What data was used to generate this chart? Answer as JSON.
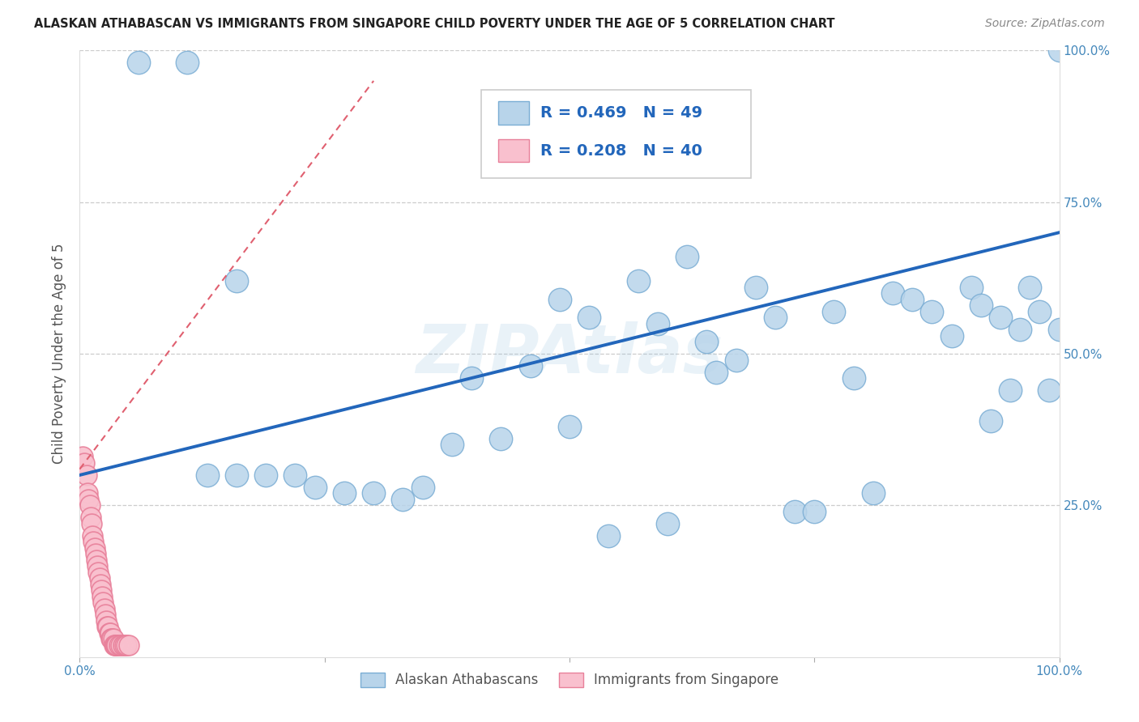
{
  "title": "ALASKAN ATHABASCAN VS IMMIGRANTS FROM SINGAPORE CHILD POVERTY UNDER THE AGE OF 5 CORRELATION CHART",
  "source": "Source: ZipAtlas.com",
  "ylabel": "Child Poverty Under the Age of 5",
  "xlim": [
    0,
    1.0
  ],
  "ylim": [
    0,
    1.0
  ],
  "blue_color": "#b8d4ea",
  "blue_edge": "#7aadd4",
  "pink_color": "#f9c0ce",
  "pink_edge": "#e8809a",
  "trend_blue": "#2266bb",
  "trend_pink": "#e06070",
  "R_blue": 0.469,
  "N_blue": 49,
  "R_pink": 0.208,
  "N_pink": 40,
  "legend_label_blue": "Alaskan Athabascans",
  "legend_label_pink": "Immigrants from Singapore",
  "watermark": "ZIPAtlas",
  "blue_scatter_x": [
    0.06,
    0.11,
    0.16,
    0.13,
    0.16,
    0.19,
    0.22,
    0.24,
    0.27,
    0.3,
    0.33,
    0.35,
    0.38,
    0.4,
    0.43,
    0.46,
    0.49,
    0.5,
    0.52,
    0.54,
    0.57,
    0.59,
    0.6,
    0.62,
    0.64,
    0.65,
    0.67,
    0.69,
    0.71,
    0.73,
    0.75,
    0.77,
    0.79,
    0.81,
    0.83,
    0.85,
    0.87,
    0.89,
    0.91,
    0.92,
    0.93,
    0.94,
    0.95,
    0.96,
    0.97,
    0.98,
    0.99,
    1.0,
    1.0
  ],
  "blue_scatter_y": [
    0.98,
    0.98,
    0.62,
    0.3,
    0.3,
    0.3,
    0.3,
    0.28,
    0.27,
    0.27,
    0.26,
    0.28,
    0.35,
    0.46,
    0.36,
    0.48,
    0.59,
    0.38,
    0.56,
    0.2,
    0.62,
    0.55,
    0.22,
    0.66,
    0.52,
    0.47,
    0.49,
    0.61,
    0.56,
    0.24,
    0.24,
    0.57,
    0.46,
    0.27,
    0.6,
    0.59,
    0.57,
    0.53,
    0.61,
    0.58,
    0.39,
    0.56,
    0.44,
    0.54,
    0.61,
    0.57,
    0.44,
    0.54,
    1.0
  ],
  "pink_scatter_x": [
    0.003,
    0.005,
    0.007,
    0.008,
    0.009,
    0.01,
    0.011,
    0.012,
    0.013,
    0.014,
    0.015,
    0.016,
    0.017,
    0.018,
    0.019,
    0.02,
    0.021,
    0.022,
    0.023,
    0.024,
    0.025,
    0.026,
    0.027,
    0.028,
    0.029,
    0.03,
    0.031,
    0.032,
    0.033,
    0.034,
    0.035,
    0.036,
    0.037,
    0.038,
    0.04,
    0.042,
    0.044,
    0.046,
    0.048,
    0.05
  ],
  "pink_scatter_y": [
    0.33,
    0.32,
    0.3,
    0.27,
    0.26,
    0.25,
    0.23,
    0.22,
    0.2,
    0.19,
    0.18,
    0.17,
    0.16,
    0.15,
    0.14,
    0.13,
    0.12,
    0.11,
    0.1,
    0.09,
    0.08,
    0.07,
    0.06,
    0.05,
    0.05,
    0.04,
    0.04,
    0.03,
    0.03,
    0.03,
    0.02,
    0.02,
    0.02,
    0.02,
    0.02,
    0.02,
    0.02,
    0.02,
    0.02,
    0.02
  ],
  "trend_blue_start_x": 0.0,
  "trend_blue_end_x": 1.0,
  "trend_blue_start_y": 0.3,
  "trend_blue_end_y": 0.7,
  "trend_pink_start_x": 0.0,
  "trend_pink_end_x": 0.3,
  "trend_pink_start_y": 0.31,
  "trend_pink_end_y": 0.95
}
